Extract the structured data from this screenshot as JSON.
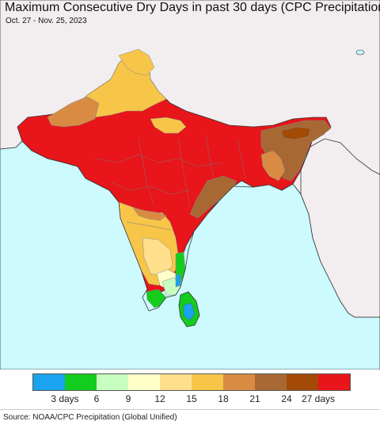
{
  "title": "Maximum Consecutive Dry Days in past 30 days (CPC Precipitation)",
  "date_range": "Oct. 27 - Nov. 25, 2023",
  "source": "Source: NOAA/CPC Precipitation (Global Unified)",
  "colors": {
    "ocean": "#ccfaff",
    "land_outside": "#f2eef0",
    "border": "#333333",
    "state_border": "#888888"
  },
  "legend": {
    "swatches": [
      {
        "color": "#1aa3f0"
      },
      {
        "color": "#14cc1e"
      },
      {
        "color": "#c8ffc0"
      },
      {
        "color": "#ffffc8"
      },
      {
        "color": "#ffdf8c"
      },
      {
        "color": "#f7c648"
      },
      {
        "color": "#d98b43"
      },
      {
        "color": "#a76834"
      },
      {
        "color": "#a34a06"
      },
      {
        "color": "#e8151a"
      }
    ],
    "labels": [
      "3 days",
      "6",
      "9",
      "12",
      "15",
      "18",
      "21",
      "24",
      "27 days"
    ]
  }
}
